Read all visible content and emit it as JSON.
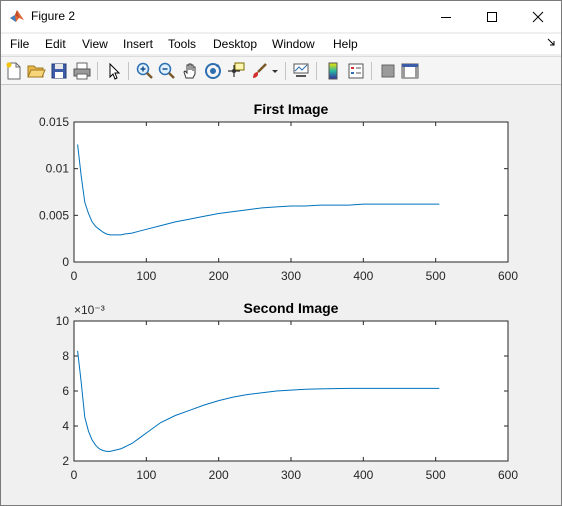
{
  "window": {
    "title": "Figure 2"
  },
  "menu": [
    "File",
    "Edit",
    "View",
    "Insert",
    "Tools",
    "Desktop",
    "Window",
    "Help"
  ],
  "toolbar_icons": [
    "new-figure-icon",
    "open-icon",
    "save-icon",
    "print-icon",
    "select-arrow-icon",
    "zoom-in-icon",
    "zoom-out-icon",
    "pan-hand-icon",
    "rotate-3d-icon",
    "data-cursor-icon",
    "brush-icon",
    "brush-dropdown-icon",
    "link-plot-icon",
    "insert-colorbar-icon",
    "insert-legend-icon",
    "hide-plot-tools-icon",
    "show-plot-tools-icon"
  ],
  "colors": {
    "line": "#0072bd",
    "axes_bg": "#ffffff",
    "figure_bg": "#f0f0f0"
  },
  "chart_data": [
    {
      "type": "line",
      "title": "First Image",
      "xlabel": "",
      "ylabel": "",
      "xlim": [
        0,
        600
      ],
      "ylim": [
        0,
        0.015
      ],
      "xticks": [
        0,
        100,
        200,
        300,
        400,
        500,
        600
      ],
      "xtick_labels": [
        "0",
        "100",
        "200",
        "300",
        "400",
        "500",
        "600"
      ],
      "yticks": [
        0,
        0.005,
        0.01,
        0.015
      ],
      "ytick_labels": [
        "0",
        "0.005",
        "0.01",
        "0.015"
      ],
      "exponent_label": "",
      "series": [
        {
          "name": "series1",
          "x": [
            5,
            10,
            15,
            20,
            25,
            30,
            35,
            40,
            45,
            50,
            55,
            60,
            65,
            70,
            80,
            90,
            100,
            120,
            140,
            160,
            180,
            200,
            220,
            240,
            260,
            280,
            300,
            320,
            340,
            360,
            380,
            400,
            420,
            440,
            460,
            480,
            505
          ],
          "y": [
            0.0126,
            0.0092,
            0.0064,
            0.0052,
            0.0043,
            0.0038,
            0.0035,
            0.0032,
            0.003,
            0.0029,
            0.0029,
            0.0029,
            0.0029,
            0.003,
            0.0031,
            0.0033,
            0.0035,
            0.0039,
            0.0043,
            0.0046,
            0.0049,
            0.0052,
            0.0054,
            0.0056,
            0.0058,
            0.0059,
            0.006,
            0.006,
            0.0061,
            0.0061,
            0.0061,
            0.0062,
            0.0062,
            0.0062,
            0.0062,
            0.0062,
            0.0062
          ]
        }
      ]
    },
    {
      "type": "line",
      "title": "Second Image",
      "xlabel": "",
      "ylabel": "",
      "xlim": [
        0,
        600
      ],
      "ylim": [
        2,
        10
      ],
      "xticks": [
        0,
        100,
        200,
        300,
        400,
        500,
        600
      ],
      "xtick_labels": [
        "0",
        "100",
        "200",
        "300",
        "400",
        "500",
        "600"
      ],
      "yticks": [
        2,
        4,
        6,
        8,
        10
      ],
      "ytick_labels": [
        "2",
        "4",
        "6",
        "8",
        "10"
      ],
      "exponent_label": "×10⁻³",
      "series": [
        {
          "name": "series1",
          "x": [
            5,
            10,
            15,
            20,
            25,
            30,
            35,
            40,
            45,
            50,
            55,
            60,
            65,
            70,
            80,
            90,
            100,
            120,
            140,
            160,
            180,
            200,
            220,
            240,
            260,
            280,
            300,
            320,
            340,
            360,
            380,
            400,
            420,
            440,
            460,
            480,
            505
          ],
          "y": [
            8.3,
            6.5,
            4.5,
            3.7,
            3.2,
            2.9,
            2.7,
            2.6,
            2.55,
            2.55,
            2.6,
            2.65,
            2.7,
            2.8,
            3.0,
            3.3,
            3.6,
            4.2,
            4.6,
            4.9,
            5.2,
            5.45,
            5.65,
            5.8,
            5.9,
            6.0,
            6.05,
            6.1,
            6.12,
            6.14,
            6.15,
            6.15,
            6.15,
            6.15,
            6.15,
            6.15,
            6.15
          ]
        }
      ]
    }
  ]
}
